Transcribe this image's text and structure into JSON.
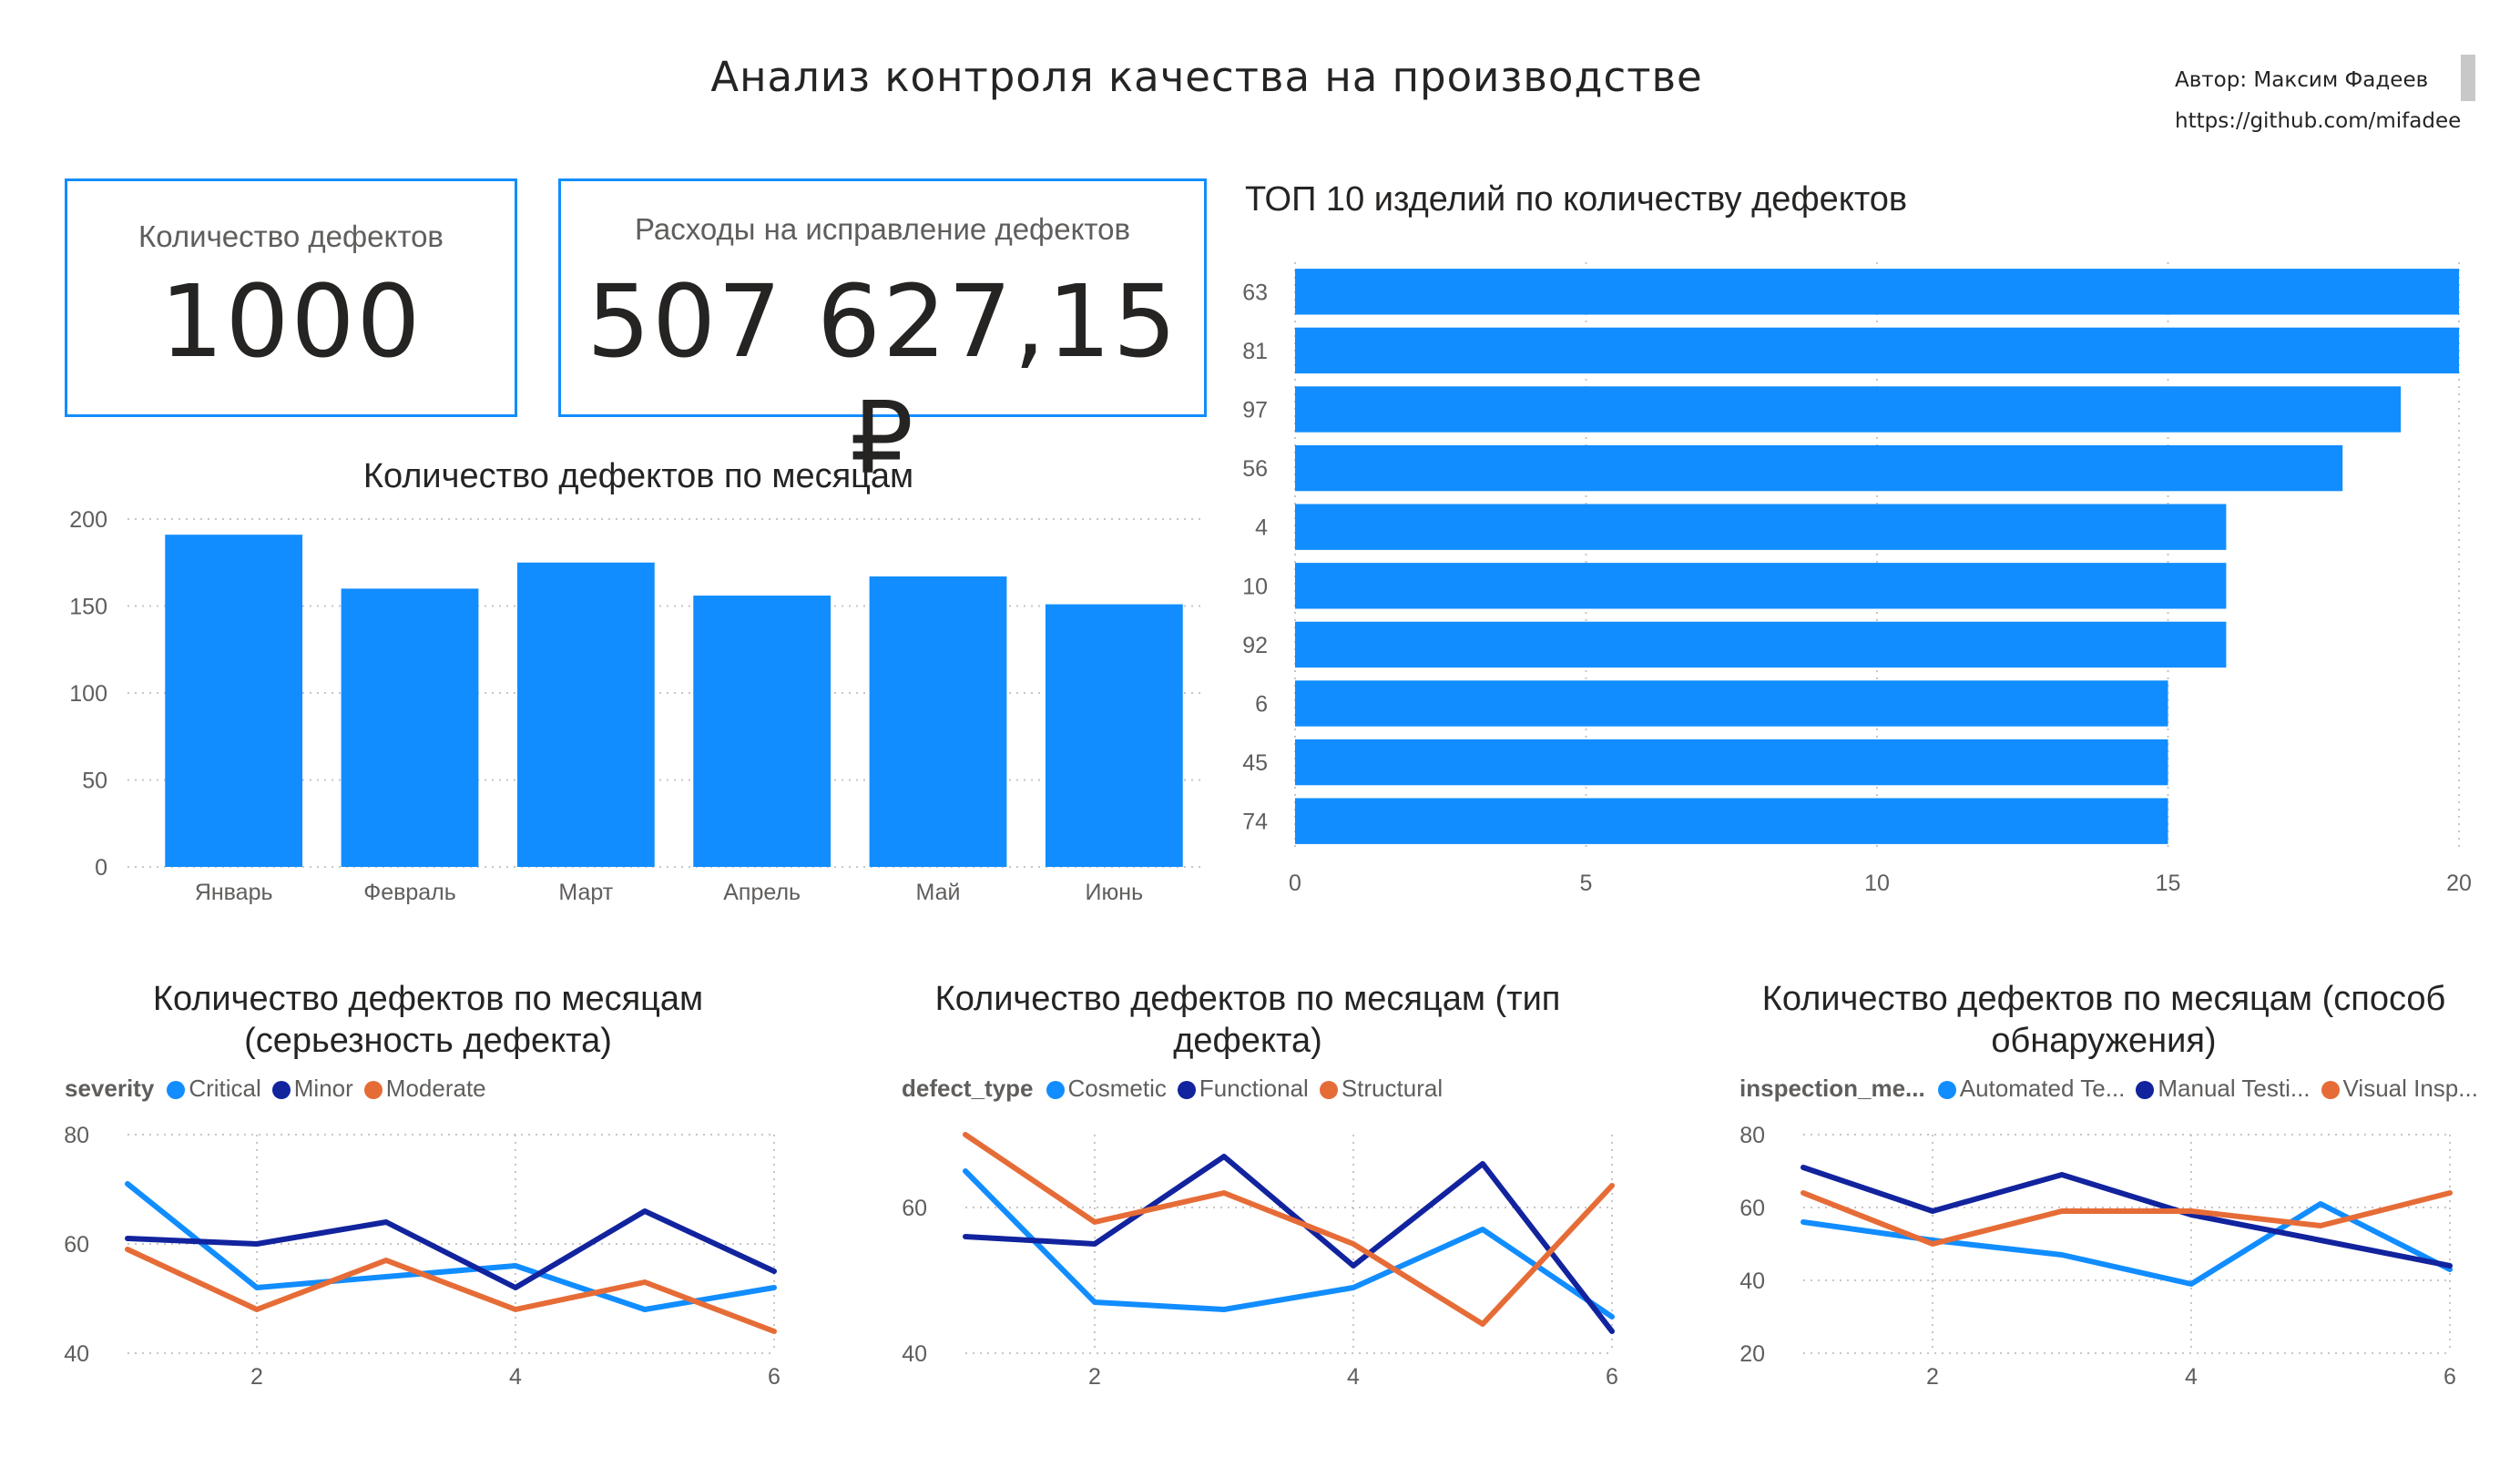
{
  "header": {
    "title": "Анализ контроля качества на производстве",
    "author_line": "Автор: Максим Фадеев",
    "link_line": "https://github.com/mifadee"
  },
  "cards": {
    "defects": {
      "label": "Количество дефектов",
      "value": "1000"
    },
    "costs": {
      "label": "Расходы на исправление дефектов",
      "value": "507 627,15 ₽"
    }
  },
  "chart_data": [
    {
      "id": "monthly",
      "type": "bar",
      "title": "Количество дефектов по месяцам",
      "categories": [
        "Январь",
        "Февраль",
        "Март",
        "Апрель",
        "Май",
        "Июнь"
      ],
      "values": [
        191,
        160,
        175,
        156,
        167,
        151
      ],
      "ylim": [
        0,
        200
      ],
      "yticks": [
        0,
        50,
        100,
        150,
        200
      ],
      "color": "#118dff",
      "grid": true
    },
    {
      "id": "top10",
      "type": "bar",
      "orientation": "horizontal",
      "title": "ТОП 10 изделий по количеству дефектов",
      "categories": [
        "63",
        "81",
        "97",
        "56",
        "4",
        "10",
        "92",
        "6",
        "45",
        "74"
      ],
      "values": [
        20,
        20,
        19,
        18,
        16,
        16,
        16,
        15,
        15,
        15
      ],
      "xlim": [
        0,
        20
      ],
      "xticks": [
        0,
        5,
        10,
        15,
        20
      ],
      "color": "#118dff",
      "grid": true
    },
    {
      "id": "severity",
      "type": "line",
      "title": "Количество дефектов по месяцам (серьезность дефекта)",
      "legend_title": "severity",
      "x": [
        1,
        2,
        3,
        4,
        5,
        6
      ],
      "xticks": [
        2,
        4,
        6
      ],
      "ylim": [
        40,
        80
      ],
      "yticks": [
        40,
        60,
        80
      ],
      "series": [
        {
          "name": "Critical",
          "color": "#118dff",
          "values": [
            71,
            52,
            54,
            56,
            48,
            52
          ]
        },
        {
          "name": "Minor",
          "color": "#12239e",
          "values": [
            61,
            60,
            64,
            52,
            66,
            55
          ]
        },
        {
          "name": "Moderate",
          "color": "#e66c37",
          "values": [
            59,
            48,
            57,
            48,
            53,
            44
          ]
        }
      ]
    },
    {
      "id": "defect_type",
      "type": "line",
      "title": "Количество дефектов по месяцам (тип дефекта)",
      "legend_title": "defect_type",
      "x": [
        1,
        2,
        3,
        4,
        5,
        6
      ],
      "xticks": [
        2,
        4,
        6
      ],
      "ylim": [
        40,
        70
      ],
      "yticks": [
        40,
        60
      ],
      "series": [
        {
          "name": "Cosmetic",
          "color": "#118dff",
          "values": [
            65,
            47,
            46,
            49,
            57,
            45
          ]
        },
        {
          "name": "Functional",
          "color": "#12239e",
          "values": [
            56,
            55,
            67,
            52,
            66,
            43
          ]
        },
        {
          "name": "Structural",
          "color": "#e66c37",
          "values": [
            70,
            58,
            62,
            55,
            44,
            63
          ]
        }
      ]
    },
    {
      "id": "inspection",
      "type": "line",
      "title": "Количество дефектов по месяцам (способ обнаружения)",
      "legend_title": "inspection_me...",
      "x": [
        1,
        2,
        3,
        4,
        5,
        6
      ],
      "xticks": [
        2,
        4,
        6
      ],
      "ylim": [
        20,
        80
      ],
      "yticks": [
        20,
        40,
        60,
        80
      ],
      "series": [
        {
          "name": "Automated Te...",
          "color": "#118dff",
          "values": [
            56,
            51,
            47,
            39,
            61,
            43
          ]
        },
        {
          "name": "Manual Testi...",
          "color": "#12239e",
          "values": [
            71,
            59,
            69,
            58,
            51,
            44
          ]
        },
        {
          "name": "Visual Insp...",
          "color": "#e66c37",
          "values": [
            64,
            50,
            59,
            59,
            55,
            64
          ]
        }
      ]
    }
  ]
}
